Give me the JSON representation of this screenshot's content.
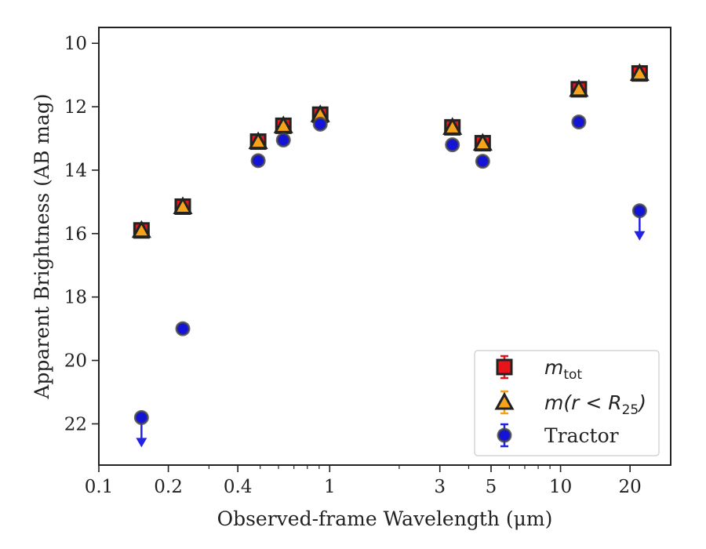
{
  "chart_data": {
    "type": "scatter",
    "xlabel": "Observed-frame Wavelength (μm)",
    "ylabel": "Apparent Brightness (AB mag)",
    "x_scale": "log",
    "y_inverted": true,
    "xlim": [
      0.1,
      30
    ],
    "ylim": [
      9.5,
      23.3
    ],
    "x_ticks": [
      {
        "value": 0.1,
        "label": "0.1"
      },
      {
        "value": 0.2,
        "label": "0.2"
      },
      {
        "value": 0.4,
        "label": "0.4"
      },
      {
        "value": 1,
        "label": "1"
      },
      {
        "value": 3,
        "label": "3"
      },
      {
        "value": 5,
        "label": "5"
      },
      {
        "value": 10,
        "label": "10"
      },
      {
        "value": 20,
        "label": "20"
      }
    ],
    "y_ticks": [
      {
        "value": 10,
        "label": "10"
      },
      {
        "value": 12,
        "label": "12"
      },
      {
        "value": 14,
        "label": "14"
      },
      {
        "value": 16,
        "label": "16"
      },
      {
        "value": 18,
        "label": "18"
      },
      {
        "value": 20,
        "label": "20"
      },
      {
        "value": 22,
        "label": "22"
      }
    ],
    "grid": false,
    "legend_position": "bottom-right",
    "series": [
      {
        "name": "m_tot",
        "label_main": "m",
        "label_sub": "tot",
        "marker": "square",
        "fill": "#e8141c",
        "edge": "#222222",
        "errcolor": "#e8141c",
        "points": [
          {
            "x": 0.153,
            "y": 15.9
          },
          {
            "x": 0.231,
            "y": 15.15
          },
          {
            "x": 0.49,
            "y": 13.1
          },
          {
            "x": 0.63,
            "y": 12.6
          },
          {
            "x": 0.91,
            "y": 12.25
          },
          {
            "x": 3.4,
            "y": 12.65
          },
          {
            "x": 4.6,
            "y": 13.15
          },
          {
            "x": 12.0,
            "y": 11.45
          },
          {
            "x": 22.0,
            "y": 10.95
          }
        ]
      },
      {
        "name": "m(r < R_25)",
        "label_main": "m(r < R",
        "label_sub": "25",
        "label_end": ")",
        "marker": "triangle",
        "fill": "#f5a31a",
        "edge": "#222222",
        "errcolor": "#f5a31a",
        "points": [
          {
            "x": 0.153,
            "y": 15.9
          },
          {
            "x": 0.231,
            "y": 15.15
          },
          {
            "x": 0.49,
            "y": 13.1
          },
          {
            "x": 0.63,
            "y": 12.6
          },
          {
            "x": 0.91,
            "y": 12.25
          },
          {
            "x": 3.4,
            "y": 12.65
          },
          {
            "x": 4.6,
            "y": 13.15
          },
          {
            "x": 12.0,
            "y": 11.45
          },
          {
            "x": 22.0,
            "y": 10.95
          }
        ]
      },
      {
        "name": "Tractor",
        "marker": "circle",
        "fill": "#1414d8",
        "edge": "#444444",
        "errcolor": "#2323e6",
        "points": [
          {
            "x": 0.153,
            "y": 21.8,
            "upper_limit": true
          },
          {
            "x": 0.231,
            "y": 19.0
          },
          {
            "x": 0.49,
            "y": 13.7
          },
          {
            "x": 0.63,
            "y": 13.05
          },
          {
            "x": 0.91,
            "y": 12.55
          },
          {
            "x": 3.4,
            "y": 13.2
          },
          {
            "x": 4.6,
            "y": 13.72
          },
          {
            "x": 12.0,
            "y": 12.48
          },
          {
            "x": 22.0,
            "y": 15.28,
            "upper_limit": true
          }
        ]
      }
    ]
  }
}
